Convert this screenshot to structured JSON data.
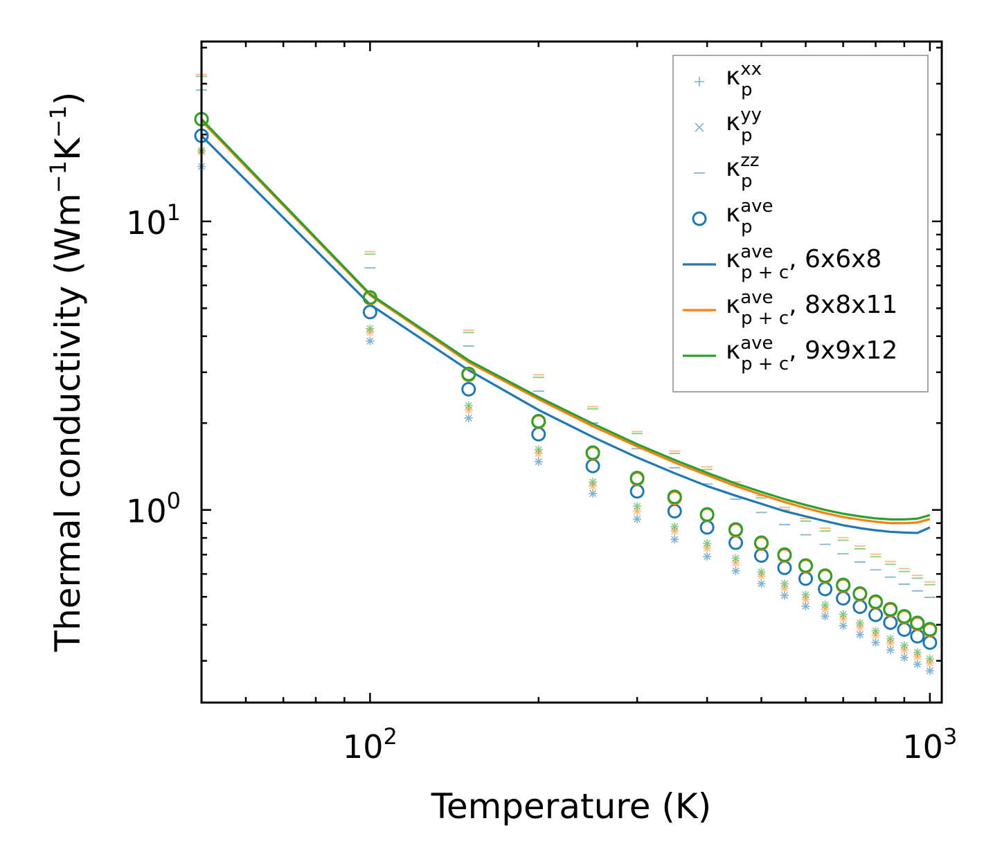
{
  "chart_data": {
    "type": "scatter",
    "xscale": "log",
    "yscale": "log",
    "xlim": [
      50,
      1050
    ],
    "ylim": [
      0.215,
      42
    ],
    "xlabel": "Temperature (K)",
    "ylabel_parts": {
      "base": "Thermal conductivity (Wm",
      "exp1": "−1",
      "mid": "K",
      "exp2": "−1",
      "end": ")"
    },
    "x_ticks": [
      {
        "base": "10",
        "exp": "2",
        "value": 100
      },
      {
        "base": "10",
        "exp": "3",
        "value": 1000
      }
    ],
    "y_ticks": [
      {
        "base": "10",
        "exp": "0",
        "value": 1
      },
      {
        "base": "10",
        "exp": "1",
        "value": 10
      }
    ],
    "colors": {
      "c6": "#1f77b4",
      "c8": "#ff7f0e",
      "c9": "#2ca02c"
    },
    "x": [
      50,
      100,
      150,
      200,
      250,
      300,
      350,
      400,
      450,
      500,
      550,
      600,
      650,
      700,
      750,
      800,
      850,
      900,
      950,
      1000
    ],
    "series": [
      {
        "name": "kappa_p^ave 6x6x8",
        "kind": "circle",
        "color_key": "c6",
        "values": [
          19.8,
          4.85,
          2.62,
          1.83,
          1.42,
          1.16,
          0.99,
          0.87,
          0.77,
          0.695,
          0.63,
          0.578,
          0.532,
          0.494,
          0.462,
          0.433,
          0.407,
          0.385,
          0.365,
          0.347
        ]
      },
      {
        "name": "kappa_p^ave 8x8x11",
        "kind": "circle",
        "color_key": "c8",
        "values": [
          22.6,
          5.42,
          2.94,
          2.02,
          1.57,
          1.28,
          1.1,
          0.96,
          0.85,
          0.765,
          0.695,
          0.638,
          0.588,
          0.546,
          0.51,
          0.478,
          0.45,
          0.425,
          0.403,
          0.383
        ]
      },
      {
        "name": "kappa_p^ave 9x9x12",
        "kind": "circle",
        "color_key": "c9",
        "values": [
          22.6,
          5.45,
          2.96,
          2.03,
          1.58,
          1.29,
          1.11,
          0.965,
          0.856,
          0.77,
          0.7,
          0.642,
          0.592,
          0.55,
          0.513,
          0.481,
          0.453,
          0.428,
          0.406,
          0.386
        ]
      },
      {
        "name": "kappa_p^xx/yy 6x6x8",
        "kind": "star",
        "color_key": "c6",
        "values": [
          15.5,
          3.85,
          2.08,
          1.47,
          1.14,
          0.93,
          0.79,
          0.69,
          0.615,
          0.555,
          0.505,
          0.464,
          0.428,
          0.397,
          0.37,
          0.347,
          0.327,
          0.308,
          0.292,
          0.277
        ]
      },
      {
        "name": "kappa_p^xx/yy 8x8x11",
        "kind": "star",
        "color_key": "c8",
        "values": [
          17.4,
          4.13,
          2.22,
          1.57,
          1.21,
          0.99,
          0.845,
          0.738,
          0.655,
          0.59,
          0.535,
          0.49,
          0.453,
          0.42,
          0.392,
          0.368,
          0.346,
          0.327,
          0.31,
          0.295
        ]
      },
      {
        "name": "kappa_p^xx/yy 9x9x12",
        "kind": "star",
        "color_key": "c9",
        "values": [
          17.6,
          4.25,
          2.3,
          1.62,
          1.25,
          1.03,
          0.875,
          0.765,
          0.68,
          0.61,
          0.555,
          0.508,
          0.469,
          0.435,
          0.406,
          0.381,
          0.358,
          0.339,
          0.321,
          0.305
        ]
      },
      {
        "name": "kappa_p^zz 6x6x8",
        "kind": "dash",
        "color_key": "c6",
        "values": [
          28.5,
          6.9,
          3.7,
          2.58,
          2.0,
          1.63,
          1.4,
          1.23,
          1.09,
          0.98,
          0.89,
          0.82,
          0.76,
          0.705,
          0.66,
          0.62,
          0.585,
          0.553,
          0.524,
          0.498
        ]
      },
      {
        "name": "kappa_p^zz 8x8x11",
        "kind": "dash",
        "color_key": "c8",
        "values": [
          32.3,
          7.85,
          4.2,
          2.94,
          2.28,
          1.87,
          1.6,
          1.41,
          1.25,
          1.12,
          1.02,
          0.935,
          0.865,
          0.802,
          0.75,
          0.703,
          0.662,
          0.626,
          0.593,
          0.563
        ]
      },
      {
        "name": "kappa_p^zz 9x9x12",
        "kind": "dash",
        "color_key": "c9",
        "values": [
          31.8,
          7.7,
          4.12,
          2.88,
          2.24,
          1.84,
          1.57,
          1.38,
          1.22,
          1.1,
          1.0,
          0.915,
          0.845,
          0.785,
          0.733,
          0.688,
          0.648,
          0.612,
          0.58,
          0.551
        ]
      },
      {
        "name": "kappa_p+c^ave 6x6x8",
        "kind": "line",
        "color_key": "c6",
        "values": [
          19.8,
          5.15,
          3.05,
          2.22,
          1.79,
          1.52,
          1.34,
          1.21,
          1.12,
          1.05,
          0.99,
          0.95,
          0.915,
          0.885,
          0.865,
          0.85,
          0.84,
          0.835,
          0.832,
          0.87
        ]
      },
      {
        "name": "kappa_p+c^ave 8x8x11",
        "kind": "line",
        "color_key": "c8",
        "values": [
          22.3,
          5.55,
          3.25,
          2.42,
          1.95,
          1.66,
          1.46,
          1.32,
          1.21,
          1.13,
          1.065,
          1.015,
          0.975,
          0.945,
          0.925,
          0.91,
          0.9,
          0.9,
          0.905,
          0.93
        ]
      },
      {
        "name": "kappa_p+c^ave 9x9x12",
        "kind": "line",
        "color_key": "c9",
        "values": [
          22.6,
          5.6,
          3.3,
          2.46,
          1.99,
          1.69,
          1.49,
          1.345,
          1.235,
          1.155,
          1.09,
          1.04,
          1.0,
          0.97,
          0.95,
          0.935,
          0.927,
          0.927,
          0.933,
          0.96
        ]
      }
    ],
    "legend": {
      "position": "upper-right",
      "entries": [
        {
          "kind": "plus",
          "color_key": "c6",
          "sym": "κ",
          "sub": "p",
          "sup": "xx",
          "suffix": ""
        },
        {
          "kind": "cross",
          "color_key": "c6",
          "sym": "κ",
          "sub": "p",
          "sup": "yy",
          "suffix": ""
        },
        {
          "kind": "dash",
          "color_key": "c6",
          "sym": "κ",
          "sub": "p",
          "sup": "zz",
          "suffix": ""
        },
        {
          "kind": "circle",
          "color_key": "c6",
          "sym": "κ",
          "sub": "p",
          "sup": "ave",
          "suffix": ""
        },
        {
          "kind": "line",
          "color_key": "c6",
          "sym": "κ",
          "sub": "p + c",
          "sup": "ave",
          "suffix": ", 6x6x8"
        },
        {
          "kind": "line",
          "color_key": "c8",
          "sym": "κ",
          "sub": "p + c",
          "sup": "ave",
          "suffix": ", 8x8x11"
        },
        {
          "kind": "line",
          "color_key": "c9",
          "sym": "κ",
          "sub": "p + c",
          "sup": "ave",
          "suffix": ", 9x9x12"
        }
      ]
    }
  }
}
